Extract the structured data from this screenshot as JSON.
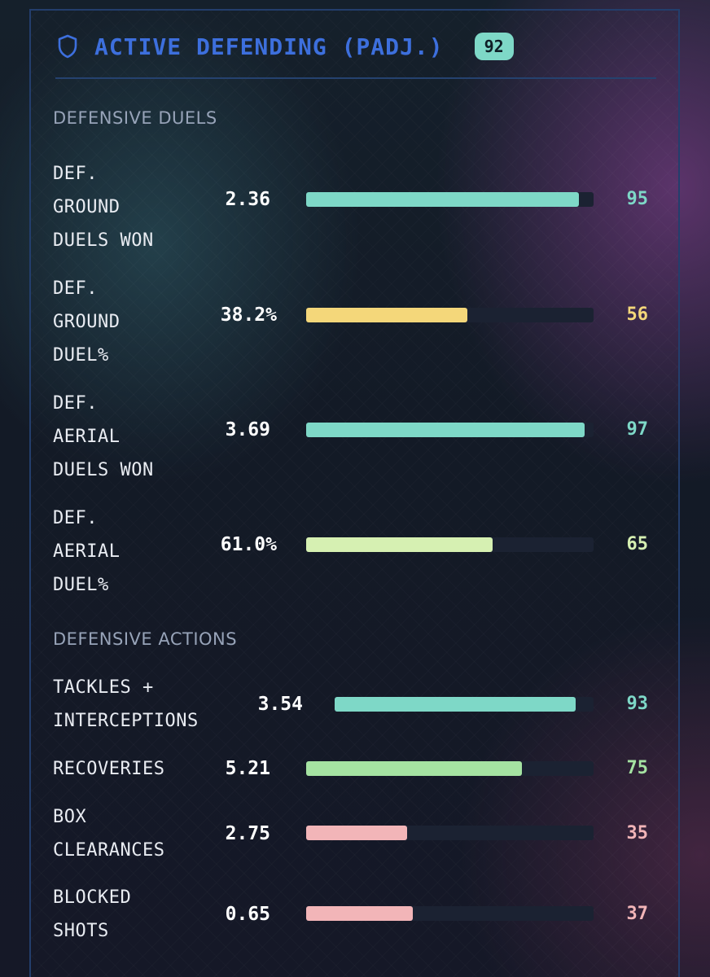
{
  "header": {
    "title": "ACTIVE DEFENDING (PADJ.)",
    "score": "92",
    "icon": "shield-icon",
    "accent_color": "#3d6fdd",
    "badge_color": "#7ed8c7"
  },
  "sections": {
    "duels": {
      "title": "DEFENSIVE DUELS"
    },
    "actions": {
      "title": "DEFENSIVE ACTIONS"
    }
  },
  "metrics": [
    {
      "label": "DEF.\nGROUND\nDUELS WON",
      "value": "2.36",
      "percentile": "95",
      "fill": 0.95,
      "color": "#7ed8c7"
    },
    {
      "label": "DEF.\nGROUND\nDUEL%",
      "value": "38.2%",
      "percentile": "56",
      "fill": 0.56,
      "color": "#f4d77a"
    },
    {
      "label": "DEF.\nAERIAL\nDUELS WON",
      "value": "3.69",
      "percentile": "97",
      "fill": 0.97,
      "color": "#7ed8c7"
    },
    {
      "label": "DEF.\nAERIAL\nDUEL%",
      "value": "61.0%",
      "percentile": "65",
      "fill": 0.65,
      "color": "#d6f0b2"
    },
    {
      "label": "TACKLES +\nINTERCEPTIONS",
      "value": "3.54",
      "percentile": "93",
      "fill": 0.93,
      "color": "#7ed8c7"
    },
    {
      "label": "RECOVERIES",
      "value": "5.21",
      "percentile": "75",
      "fill": 0.75,
      "color": "#a5e3a2"
    },
    {
      "label": "BOX\nCLEARANCES",
      "value": "2.75",
      "percentile": "35",
      "fill": 0.35,
      "color": "#f2b5b8"
    },
    {
      "label": "BLOCKED\nSHOTS",
      "value": "0.65",
      "percentile": "37",
      "fill": 0.37,
      "color": "#f2b5b8"
    }
  ]
}
